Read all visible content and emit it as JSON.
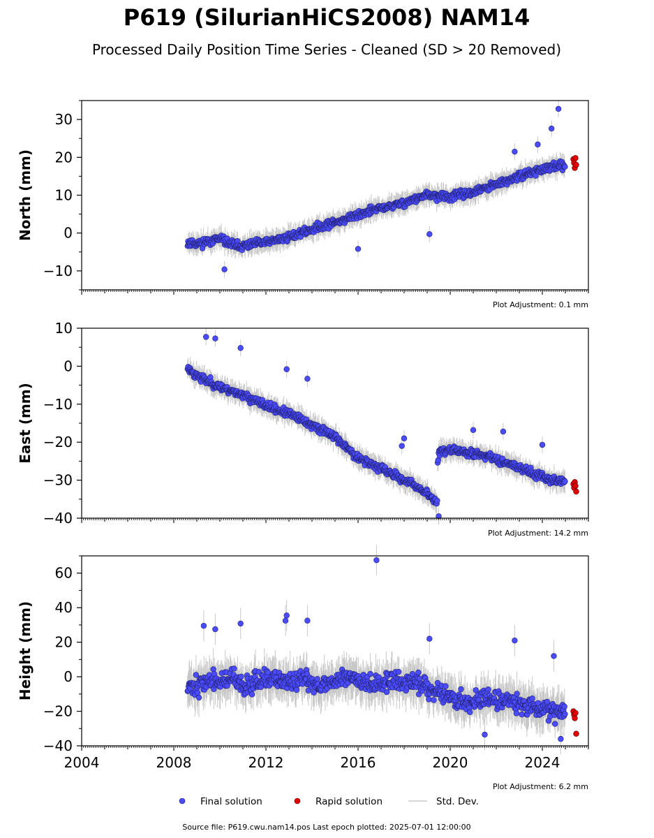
{
  "title": "P619 (SilurianHiCS2008) NAM14",
  "subtitle": "Processed Daily Position Time Series - Cleaned (SD > 20 Removed)",
  "legend": {
    "final": "Final solution",
    "rapid": "Rapid solution",
    "std": "Std. Dev.",
    "placement": "bottom-center"
  },
  "source_text": "Source file: P619.cwu.nam14.pos  Last epoch plotted: 2025-07-01 12:00:00",
  "colors": {
    "final": "#4b4bff",
    "rapid": "#e00000",
    "std": "#c8c8c8",
    "axis": "#000000"
  },
  "x_tick_labels": [
    "2004",
    "2008",
    "2012",
    "2016",
    "2020",
    "2024"
  ],
  "chart_data": [
    {
      "type": "scatter",
      "panel": "north",
      "ylabel": "North (mm)",
      "xlim": [
        2004.0,
        2026.0
      ],
      "ylim": [
        -15,
        35
      ],
      "yticks": [
        -10,
        0,
        10,
        20,
        30
      ],
      "ytick_labels": [
        "−10",
        "0",
        "10",
        "20",
        "30"
      ],
      "adjustment": "Plot Adjustment: 0.1 mm",
      "show_xtick_labels": false,
      "series": [
        {
          "name": "Final solution",
          "x": [
            2008.6,
            2009.0,
            2009.5,
            2010.0,
            2010.5,
            2011.0,
            2011.5,
            2012.0,
            2012.5,
            2013.0,
            2013.5,
            2014.0,
            2014.5,
            2015.0,
            2015.5,
            2016.0,
            2016.5,
            2017.0,
            2017.5,
            2018.0,
            2018.5,
            2019.0,
            2019.5,
            2020.0,
            2020.5,
            2021.0,
            2021.5,
            2022.0,
            2022.5,
            2023.0,
            2023.5,
            2024.0,
            2024.5,
            2025.0
          ],
          "y": [
            -2.5,
            -2.8,
            -2.2,
            -1.5,
            -3.0,
            -3.5,
            -2.8,
            -2.5,
            -1.8,
            -1.0,
            0.0,
            1.0,
            2.0,
            2.8,
            3.8,
            4.8,
            5.8,
            6.5,
            7.2,
            8.0,
            9.0,
            10.0,
            9.8,
            9.5,
            10.2,
            10.8,
            11.8,
            12.8,
            13.8,
            15.0,
            16.0,
            16.8,
            17.5,
            18.0
          ]
        },
        {
          "name": "Rapid solution",
          "x": [
            2025.35,
            2025.38,
            2025.41,
            2025.44,
            2025.47
          ],
          "y": [
            19.5,
            18.5,
            17.2,
            19.8,
            18.0
          ]
        }
      ],
      "outliers": [
        [
          2024.7,
          32.8
        ],
        [
          2016.0,
          -4.2
        ],
        [
          2019.1,
          -0.3
        ],
        [
          2010.2,
          -9.6
        ],
        [
          2024.4,
          27.6
        ],
        [
          2023.8,
          23.4
        ],
        [
          2022.8,
          21.5
        ]
      ]
    },
    {
      "type": "scatter",
      "panel": "east",
      "ylabel": "East (mm)",
      "xlim": [
        2004.0,
        2026.0
      ],
      "ylim": [
        -40,
        10
      ],
      "yticks": [
        -40,
        -30,
        -20,
        -10,
        0,
        10
      ],
      "ytick_labels": [
        "−40",
        "−30",
        "−20",
        "−10",
        "0",
        "10"
      ],
      "adjustment": "Plot Adjustment: 14.2 mm",
      "show_xtick_labels": false,
      "series": [
        {
          "name": "Final solution",
          "x": [
            2008.6,
            2009.0,
            2009.5,
            2010.0,
            2010.5,
            2011.0,
            2011.5,
            2012.0,
            2012.5,
            2013.0,
            2013.5,
            2014.0,
            2014.5,
            2015.0,
            2015.5,
            2016.0,
            2016.5,
            2017.0,
            2017.5,
            2018.0,
            2018.5,
            2019.0,
            2019.3,
            2019.5,
            2020.0,
            2020.5,
            2021.0,
            2021.5,
            2022.0,
            2022.5,
            2023.0,
            2023.5,
            2024.0,
            2024.5,
            2025.0
          ],
          "y": [
            -0.5,
            -2.5,
            -4.0,
            -5.5,
            -6.5,
            -7.5,
            -9.0,
            -10.5,
            -11.5,
            -12.5,
            -14.0,
            -15.5,
            -17.0,
            -18.5,
            -21.5,
            -24.0,
            -25.5,
            -27.0,
            -28.5,
            -30.0,
            -31.5,
            -33.5,
            -35.5,
            -22.5,
            -22.0,
            -22.5,
            -23.0,
            -23.5,
            -24.5,
            -25.5,
            -26.5,
            -28.0,
            -29.0,
            -30.0,
            -30.5
          ]
        },
        {
          "name": "Rapid solution",
          "x": [
            2025.35,
            2025.38,
            2025.41,
            2025.44,
            2025.47
          ],
          "y": [
            -31.0,
            -32.0,
            -30.5,
            -31.5,
            -33.0
          ]
        }
      ],
      "outliers": [
        [
          2009.4,
          7.7
        ],
        [
          2009.8,
          7.3
        ],
        [
          2010.9,
          4.8
        ],
        [
          2012.9,
          -0.8
        ],
        [
          2013.8,
          -3.3
        ],
        [
          2017.9,
          -21.0
        ],
        [
          2018.0,
          -19.0
        ],
        [
          2021.0,
          -16.8
        ],
        [
          2022.3,
          -17.2
        ],
        [
          2024.0,
          -20.7
        ],
        [
          2019.5,
          -39.5
        ]
      ]
    },
    {
      "type": "scatter",
      "panel": "height",
      "ylabel": "Height (mm)",
      "xlim": [
        2004.0,
        2026.0
      ],
      "ylim": [
        -40,
        70
      ],
      "yticks": [
        -40,
        -20,
        0,
        20,
        40,
        60
      ],
      "ytick_labels": [
        "−40",
        "−20",
        "0",
        "20",
        "40",
        "60"
      ],
      "adjustment": "Plot Adjustment: 6.2 mm",
      "show_xtick_labels": true,
      "series": [
        {
          "name": "Final solution",
          "x": [
            2008.6,
            2009.0,
            2009.5,
            2010.0,
            2010.5,
            2011.0,
            2011.5,
            2012.0,
            2012.5,
            2013.0,
            2013.5,
            2014.0,
            2014.5,
            2015.0,
            2015.5,
            2016.0,
            2016.5,
            2017.0,
            2017.5,
            2018.0,
            2018.5,
            2019.0,
            2019.5,
            2020.0,
            2020.5,
            2021.0,
            2021.5,
            2022.0,
            2022.5,
            2023.0,
            2023.5,
            2024.0,
            2024.5,
            2025.0
          ],
          "y": [
            -4,
            -6,
            -2,
            -3,
            -1,
            -6,
            -2,
            -3,
            -1,
            -4,
            -2,
            -3,
            -5,
            -2,
            0,
            -1,
            -3,
            -5,
            -2,
            -4,
            -3,
            -6,
            -8,
            -12,
            -14,
            -15,
            -12,
            -13,
            -14,
            -16,
            -17,
            -18,
            -19,
            -20
          ]
        },
        {
          "name": "Rapid solution",
          "x": [
            2025.35,
            2025.38,
            2025.41,
            2025.44,
            2025.47
          ],
          "y": [
            -20,
            -22,
            -24,
            -21,
            -33
          ]
        }
      ],
      "outliers": [
        [
          2016.8,
          67.5
        ],
        [
          2012.9,
          35.5
        ],
        [
          2012.85,
          32.5
        ],
        [
          2013.8,
          32.5
        ],
        [
          2010.9,
          30.8
        ],
        [
          2009.3,
          29.5
        ],
        [
          2009.8,
          27.5
        ],
        [
          2019.1,
          22.0
        ],
        [
          2022.8,
          21.0
        ],
        [
          2024.5,
          12.0
        ],
        [
          2021.5,
          -33.5
        ],
        [
          2024.8,
          -36.0
        ]
      ]
    }
  ]
}
